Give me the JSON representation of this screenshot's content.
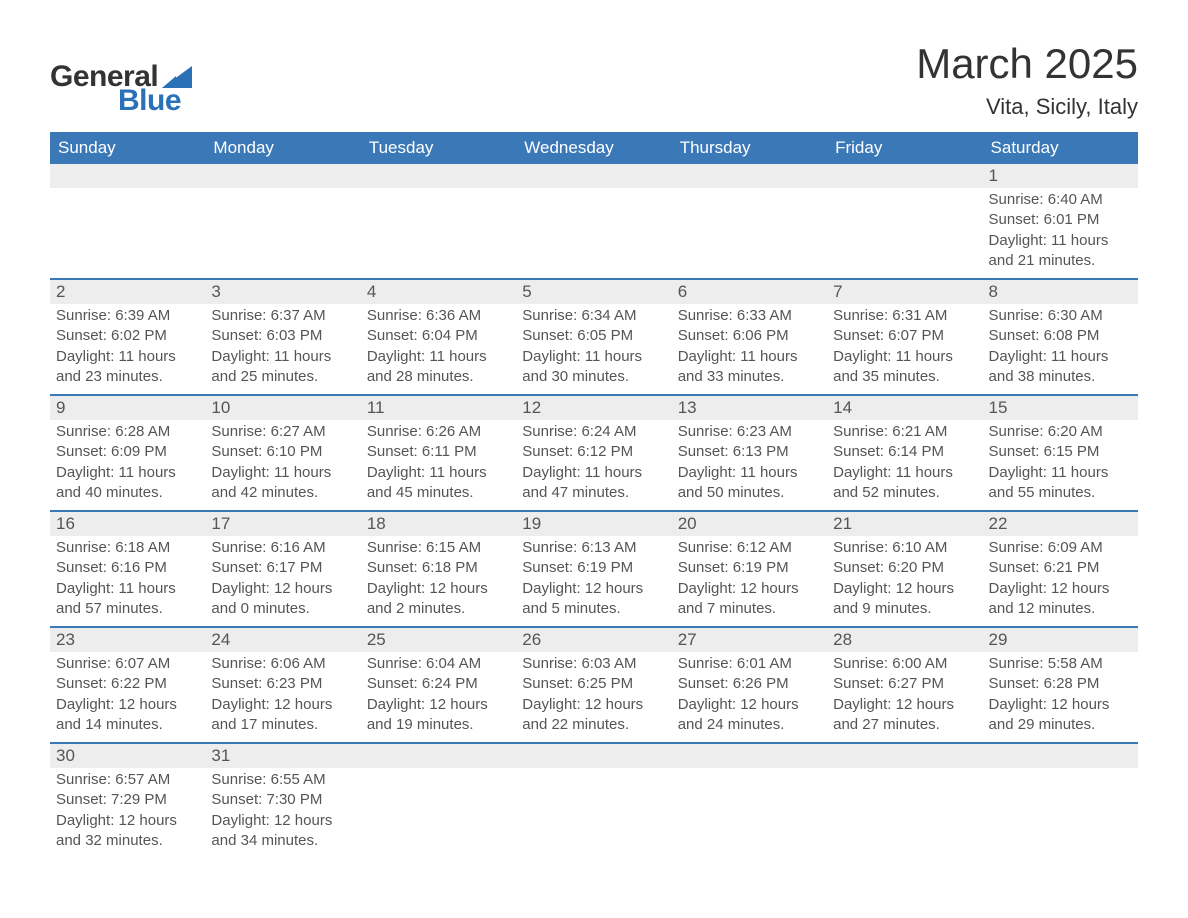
{
  "logo": {
    "text_general": "General",
    "text_blue": "Blue",
    "tri_color": "#2a71b8"
  },
  "title": {
    "month": "March 2025",
    "location": "Vita, Sicily, Italy"
  },
  "colors": {
    "header_bg": "#3b78b8",
    "header_text": "#ffffff",
    "date_strip_bg": "#ededed",
    "body_text": "#555555",
    "border": "#3b78b8",
    "page_bg": "#ffffff"
  },
  "fonts": {
    "family": "Arial",
    "title_size_pt": 32,
    "location_size_pt": 17,
    "header_size_pt": 13,
    "date_size_pt": 13,
    "body_size_pt": 11
  },
  "day_headers": [
    "Sunday",
    "Monday",
    "Tuesday",
    "Wednesday",
    "Thursday",
    "Friday",
    "Saturday"
  ],
  "weeks": [
    [
      {
        "date": "",
        "sunrise": "",
        "sunset": "",
        "daylight": ""
      },
      {
        "date": "",
        "sunrise": "",
        "sunset": "",
        "daylight": ""
      },
      {
        "date": "",
        "sunrise": "",
        "sunset": "",
        "daylight": ""
      },
      {
        "date": "",
        "sunrise": "",
        "sunset": "",
        "daylight": ""
      },
      {
        "date": "",
        "sunrise": "",
        "sunset": "",
        "daylight": ""
      },
      {
        "date": "",
        "sunrise": "",
        "sunset": "",
        "daylight": ""
      },
      {
        "date": "1",
        "sunrise": "Sunrise: 6:40 AM",
        "sunset": "Sunset: 6:01 PM",
        "daylight": "Daylight: 11 hours and 21 minutes."
      }
    ],
    [
      {
        "date": "2",
        "sunrise": "Sunrise: 6:39 AM",
        "sunset": "Sunset: 6:02 PM",
        "daylight": "Daylight: 11 hours and 23 minutes."
      },
      {
        "date": "3",
        "sunrise": "Sunrise: 6:37 AM",
        "sunset": "Sunset: 6:03 PM",
        "daylight": "Daylight: 11 hours and 25 minutes."
      },
      {
        "date": "4",
        "sunrise": "Sunrise: 6:36 AM",
        "sunset": "Sunset: 6:04 PM",
        "daylight": "Daylight: 11 hours and 28 minutes."
      },
      {
        "date": "5",
        "sunrise": "Sunrise: 6:34 AM",
        "sunset": "Sunset: 6:05 PM",
        "daylight": "Daylight: 11 hours and 30 minutes."
      },
      {
        "date": "6",
        "sunrise": "Sunrise: 6:33 AM",
        "sunset": "Sunset: 6:06 PM",
        "daylight": "Daylight: 11 hours and 33 minutes."
      },
      {
        "date": "7",
        "sunrise": "Sunrise: 6:31 AM",
        "sunset": "Sunset: 6:07 PM",
        "daylight": "Daylight: 11 hours and 35 minutes."
      },
      {
        "date": "8",
        "sunrise": "Sunrise: 6:30 AM",
        "sunset": "Sunset: 6:08 PM",
        "daylight": "Daylight: 11 hours and 38 minutes."
      }
    ],
    [
      {
        "date": "9",
        "sunrise": "Sunrise: 6:28 AM",
        "sunset": "Sunset: 6:09 PM",
        "daylight": "Daylight: 11 hours and 40 minutes."
      },
      {
        "date": "10",
        "sunrise": "Sunrise: 6:27 AM",
        "sunset": "Sunset: 6:10 PM",
        "daylight": "Daylight: 11 hours and 42 minutes."
      },
      {
        "date": "11",
        "sunrise": "Sunrise: 6:26 AM",
        "sunset": "Sunset: 6:11 PM",
        "daylight": "Daylight: 11 hours and 45 minutes."
      },
      {
        "date": "12",
        "sunrise": "Sunrise: 6:24 AM",
        "sunset": "Sunset: 6:12 PM",
        "daylight": "Daylight: 11 hours and 47 minutes."
      },
      {
        "date": "13",
        "sunrise": "Sunrise: 6:23 AM",
        "sunset": "Sunset: 6:13 PM",
        "daylight": "Daylight: 11 hours and 50 minutes."
      },
      {
        "date": "14",
        "sunrise": "Sunrise: 6:21 AM",
        "sunset": "Sunset: 6:14 PM",
        "daylight": "Daylight: 11 hours and 52 minutes."
      },
      {
        "date": "15",
        "sunrise": "Sunrise: 6:20 AM",
        "sunset": "Sunset: 6:15 PM",
        "daylight": "Daylight: 11 hours and 55 minutes."
      }
    ],
    [
      {
        "date": "16",
        "sunrise": "Sunrise: 6:18 AM",
        "sunset": "Sunset: 6:16 PM",
        "daylight": "Daylight: 11 hours and 57 minutes."
      },
      {
        "date": "17",
        "sunrise": "Sunrise: 6:16 AM",
        "sunset": "Sunset: 6:17 PM",
        "daylight": "Daylight: 12 hours and 0 minutes."
      },
      {
        "date": "18",
        "sunrise": "Sunrise: 6:15 AM",
        "sunset": "Sunset: 6:18 PM",
        "daylight": "Daylight: 12 hours and 2 minutes."
      },
      {
        "date": "19",
        "sunrise": "Sunrise: 6:13 AM",
        "sunset": "Sunset: 6:19 PM",
        "daylight": "Daylight: 12 hours and 5 minutes."
      },
      {
        "date": "20",
        "sunrise": "Sunrise: 6:12 AM",
        "sunset": "Sunset: 6:19 PM",
        "daylight": "Daylight: 12 hours and 7 minutes."
      },
      {
        "date": "21",
        "sunrise": "Sunrise: 6:10 AM",
        "sunset": "Sunset: 6:20 PM",
        "daylight": "Daylight: 12 hours and 9 minutes."
      },
      {
        "date": "22",
        "sunrise": "Sunrise: 6:09 AM",
        "sunset": "Sunset: 6:21 PM",
        "daylight": "Daylight: 12 hours and 12 minutes."
      }
    ],
    [
      {
        "date": "23",
        "sunrise": "Sunrise: 6:07 AM",
        "sunset": "Sunset: 6:22 PM",
        "daylight": "Daylight: 12 hours and 14 minutes."
      },
      {
        "date": "24",
        "sunrise": "Sunrise: 6:06 AM",
        "sunset": "Sunset: 6:23 PM",
        "daylight": "Daylight: 12 hours and 17 minutes."
      },
      {
        "date": "25",
        "sunrise": "Sunrise: 6:04 AM",
        "sunset": "Sunset: 6:24 PM",
        "daylight": "Daylight: 12 hours and 19 minutes."
      },
      {
        "date": "26",
        "sunrise": "Sunrise: 6:03 AM",
        "sunset": "Sunset: 6:25 PM",
        "daylight": "Daylight: 12 hours and 22 minutes."
      },
      {
        "date": "27",
        "sunrise": "Sunrise: 6:01 AM",
        "sunset": "Sunset: 6:26 PM",
        "daylight": "Daylight: 12 hours and 24 minutes."
      },
      {
        "date": "28",
        "sunrise": "Sunrise: 6:00 AM",
        "sunset": "Sunset: 6:27 PM",
        "daylight": "Daylight: 12 hours and 27 minutes."
      },
      {
        "date": "29",
        "sunrise": "Sunrise: 5:58 AM",
        "sunset": "Sunset: 6:28 PM",
        "daylight": "Daylight: 12 hours and 29 minutes."
      }
    ],
    [
      {
        "date": "30",
        "sunrise": "Sunrise: 6:57 AM",
        "sunset": "Sunset: 7:29 PM",
        "daylight": "Daylight: 12 hours and 32 minutes."
      },
      {
        "date": "31",
        "sunrise": "Sunrise: 6:55 AM",
        "sunset": "Sunset: 7:30 PM",
        "daylight": "Daylight: 12 hours and 34 minutes."
      },
      {
        "date": "",
        "sunrise": "",
        "sunset": "",
        "daylight": ""
      },
      {
        "date": "",
        "sunrise": "",
        "sunset": "",
        "daylight": ""
      },
      {
        "date": "",
        "sunrise": "",
        "sunset": "",
        "daylight": ""
      },
      {
        "date": "",
        "sunrise": "",
        "sunset": "",
        "daylight": ""
      },
      {
        "date": "",
        "sunrise": "",
        "sunset": "",
        "daylight": ""
      }
    ]
  ]
}
